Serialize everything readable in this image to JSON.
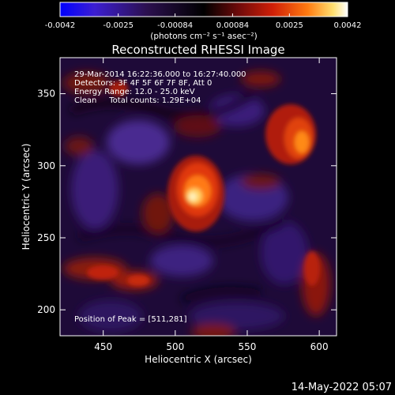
{
  "colorbar": {
    "tick_labels": [
      "-0.0042",
      "-0.0025",
      "-0.00084",
      "0.00084",
      "0.0025",
      "0.0042"
    ],
    "min": -0.0042,
    "max": 0.0042,
    "unit_label": "(photons cm⁻² s⁻¹ asec⁻²)",
    "colors": [
      "#0000ff",
      "#4b22c8",
      "#2c1050",
      "#000000",
      "#6e0a0a",
      "#d01f07",
      "#ff7a10",
      "#ffe070",
      "#ffffff"
    ]
  },
  "image": {
    "title": "Reconstructed RHESSI Image",
    "info_lines": [
      "29-Mar-2014 16:22:36.000 to 16:27:40.000",
      "Detectors: 3F 4F 5F 6F 7F 8F, Att 0",
      "Energy Range: 12.0 - 25.0 keV",
      "Clean     Total counts: 1.29E+04"
    ],
    "peak_label": "Position of Peak = [511,281]",
    "peak_position": [
      511,
      281
    ]
  },
  "axes": {
    "xlabel": "Heliocentric X (arcsec)",
    "ylabel": "Heliocentric Y (arcsec)",
    "xlim": [
      420,
      612
    ],
    "ylim": [
      182,
      375
    ],
    "xticks": [
      "450",
      "500",
      "550",
      "600"
    ],
    "yticks": [
      "200",
      "250",
      "300",
      "350"
    ]
  },
  "footer": {
    "date": "14-May-2022 05:07"
  }
}
